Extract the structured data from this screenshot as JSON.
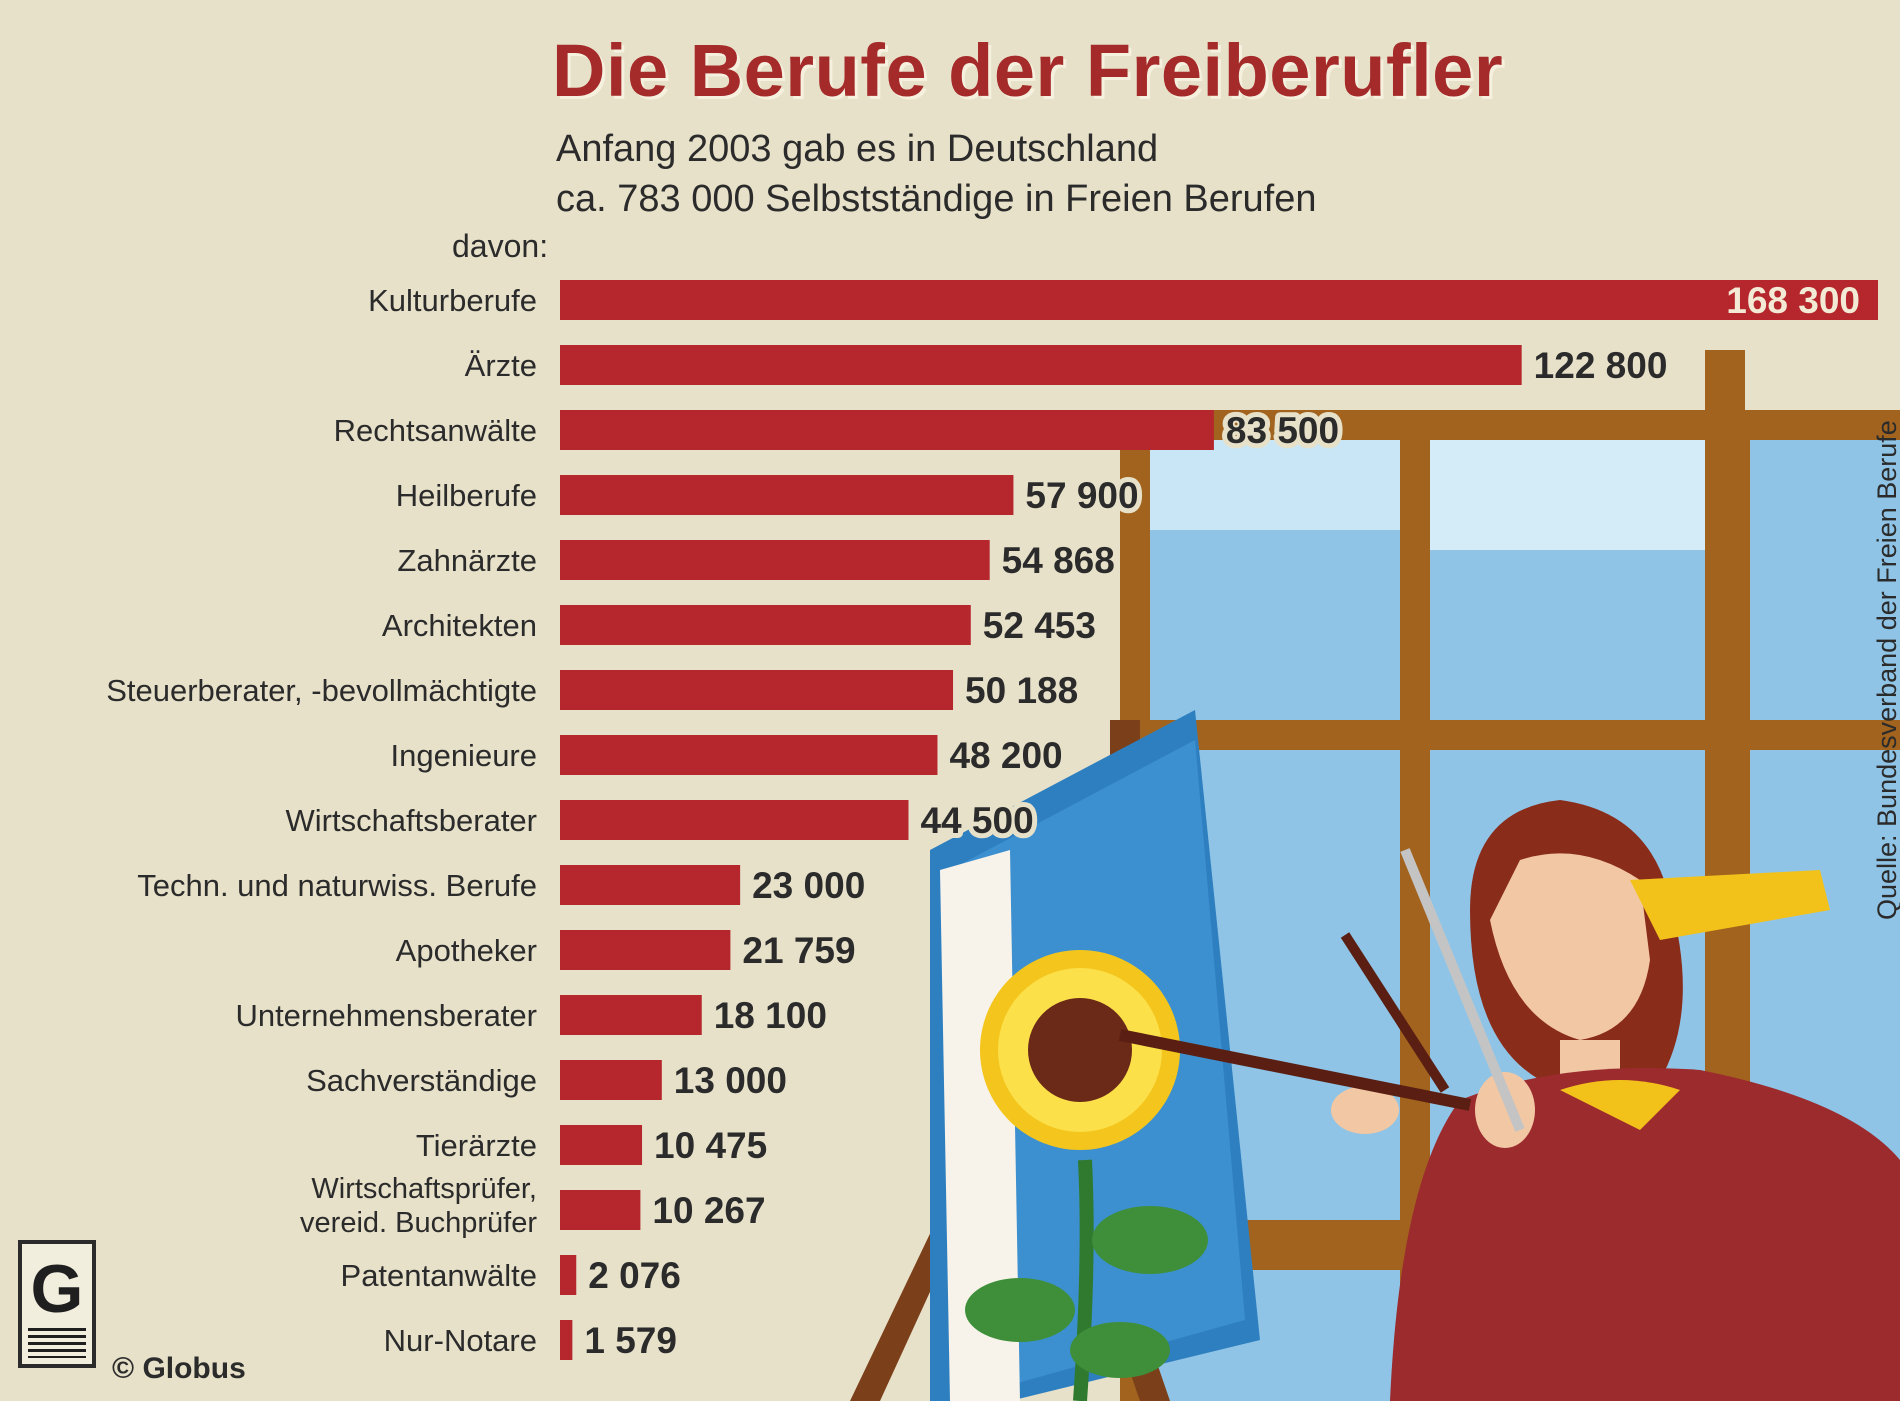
{
  "chart_data": {
    "type": "bar",
    "orientation": "horizontal",
    "title": "Die Berufe der Freiberufler",
    "subtitle": [
      "Anfang 2003 gab es in Deutschland",
      "ca. 783 000 Selbstständige in Freien Berufen"
    ],
    "category_header": "davon:",
    "categories": [
      "Kulturberufe",
      "Ärzte",
      "Rechtsanwälte",
      "Heilberufe",
      "Zahnärzte",
      "Architekten",
      "Steuerberater, -bevollmächtigte",
      "Ingenieure",
      "Wirtschaftsberater",
      "Techn. und naturwiss. Berufe",
      "Apotheker",
      "Unternehmensberater",
      "Sachverständige",
      "Tierärzte",
      [
        "Wirtschaftsprüfer,",
        "vereid. Buchprüfer"
      ],
      "Patentanwälte",
      "Nur-Notare"
    ],
    "values": [
      168300,
      122800,
      83500,
      57900,
      54868,
      52453,
      50188,
      48200,
      44500,
      23000,
      21759,
      18100,
      13000,
      10475,
      10267,
      2076,
      1579
    ],
    "value_labels": [
      "168 300",
      "122 800",
      "83 500",
      "57 900",
      "54 868",
      "52 453",
      "50 188",
      "48 200",
      "44 500",
      "23 000",
      "21 759",
      "18 100",
      "13 000",
      "10 475",
      "10 267",
      "2 076",
      "1 579"
    ],
    "first_label_inside_bar": true,
    "xlim": [
      0,
      168300
    ],
    "bar_color": "#b5272d",
    "label_color": "#2b2b2b",
    "legend": "none",
    "grid": false,
    "axes_visible": false
  },
  "source": "Quelle: Bundesverband der Freien Berufe",
  "copyright": "© Globus",
  "logo": {
    "letter": "G",
    "icon": "globus-logo"
  },
  "colors": {
    "background": "#e7e1c9",
    "title": "#a52a2a",
    "text": "#2b2b2b"
  }
}
